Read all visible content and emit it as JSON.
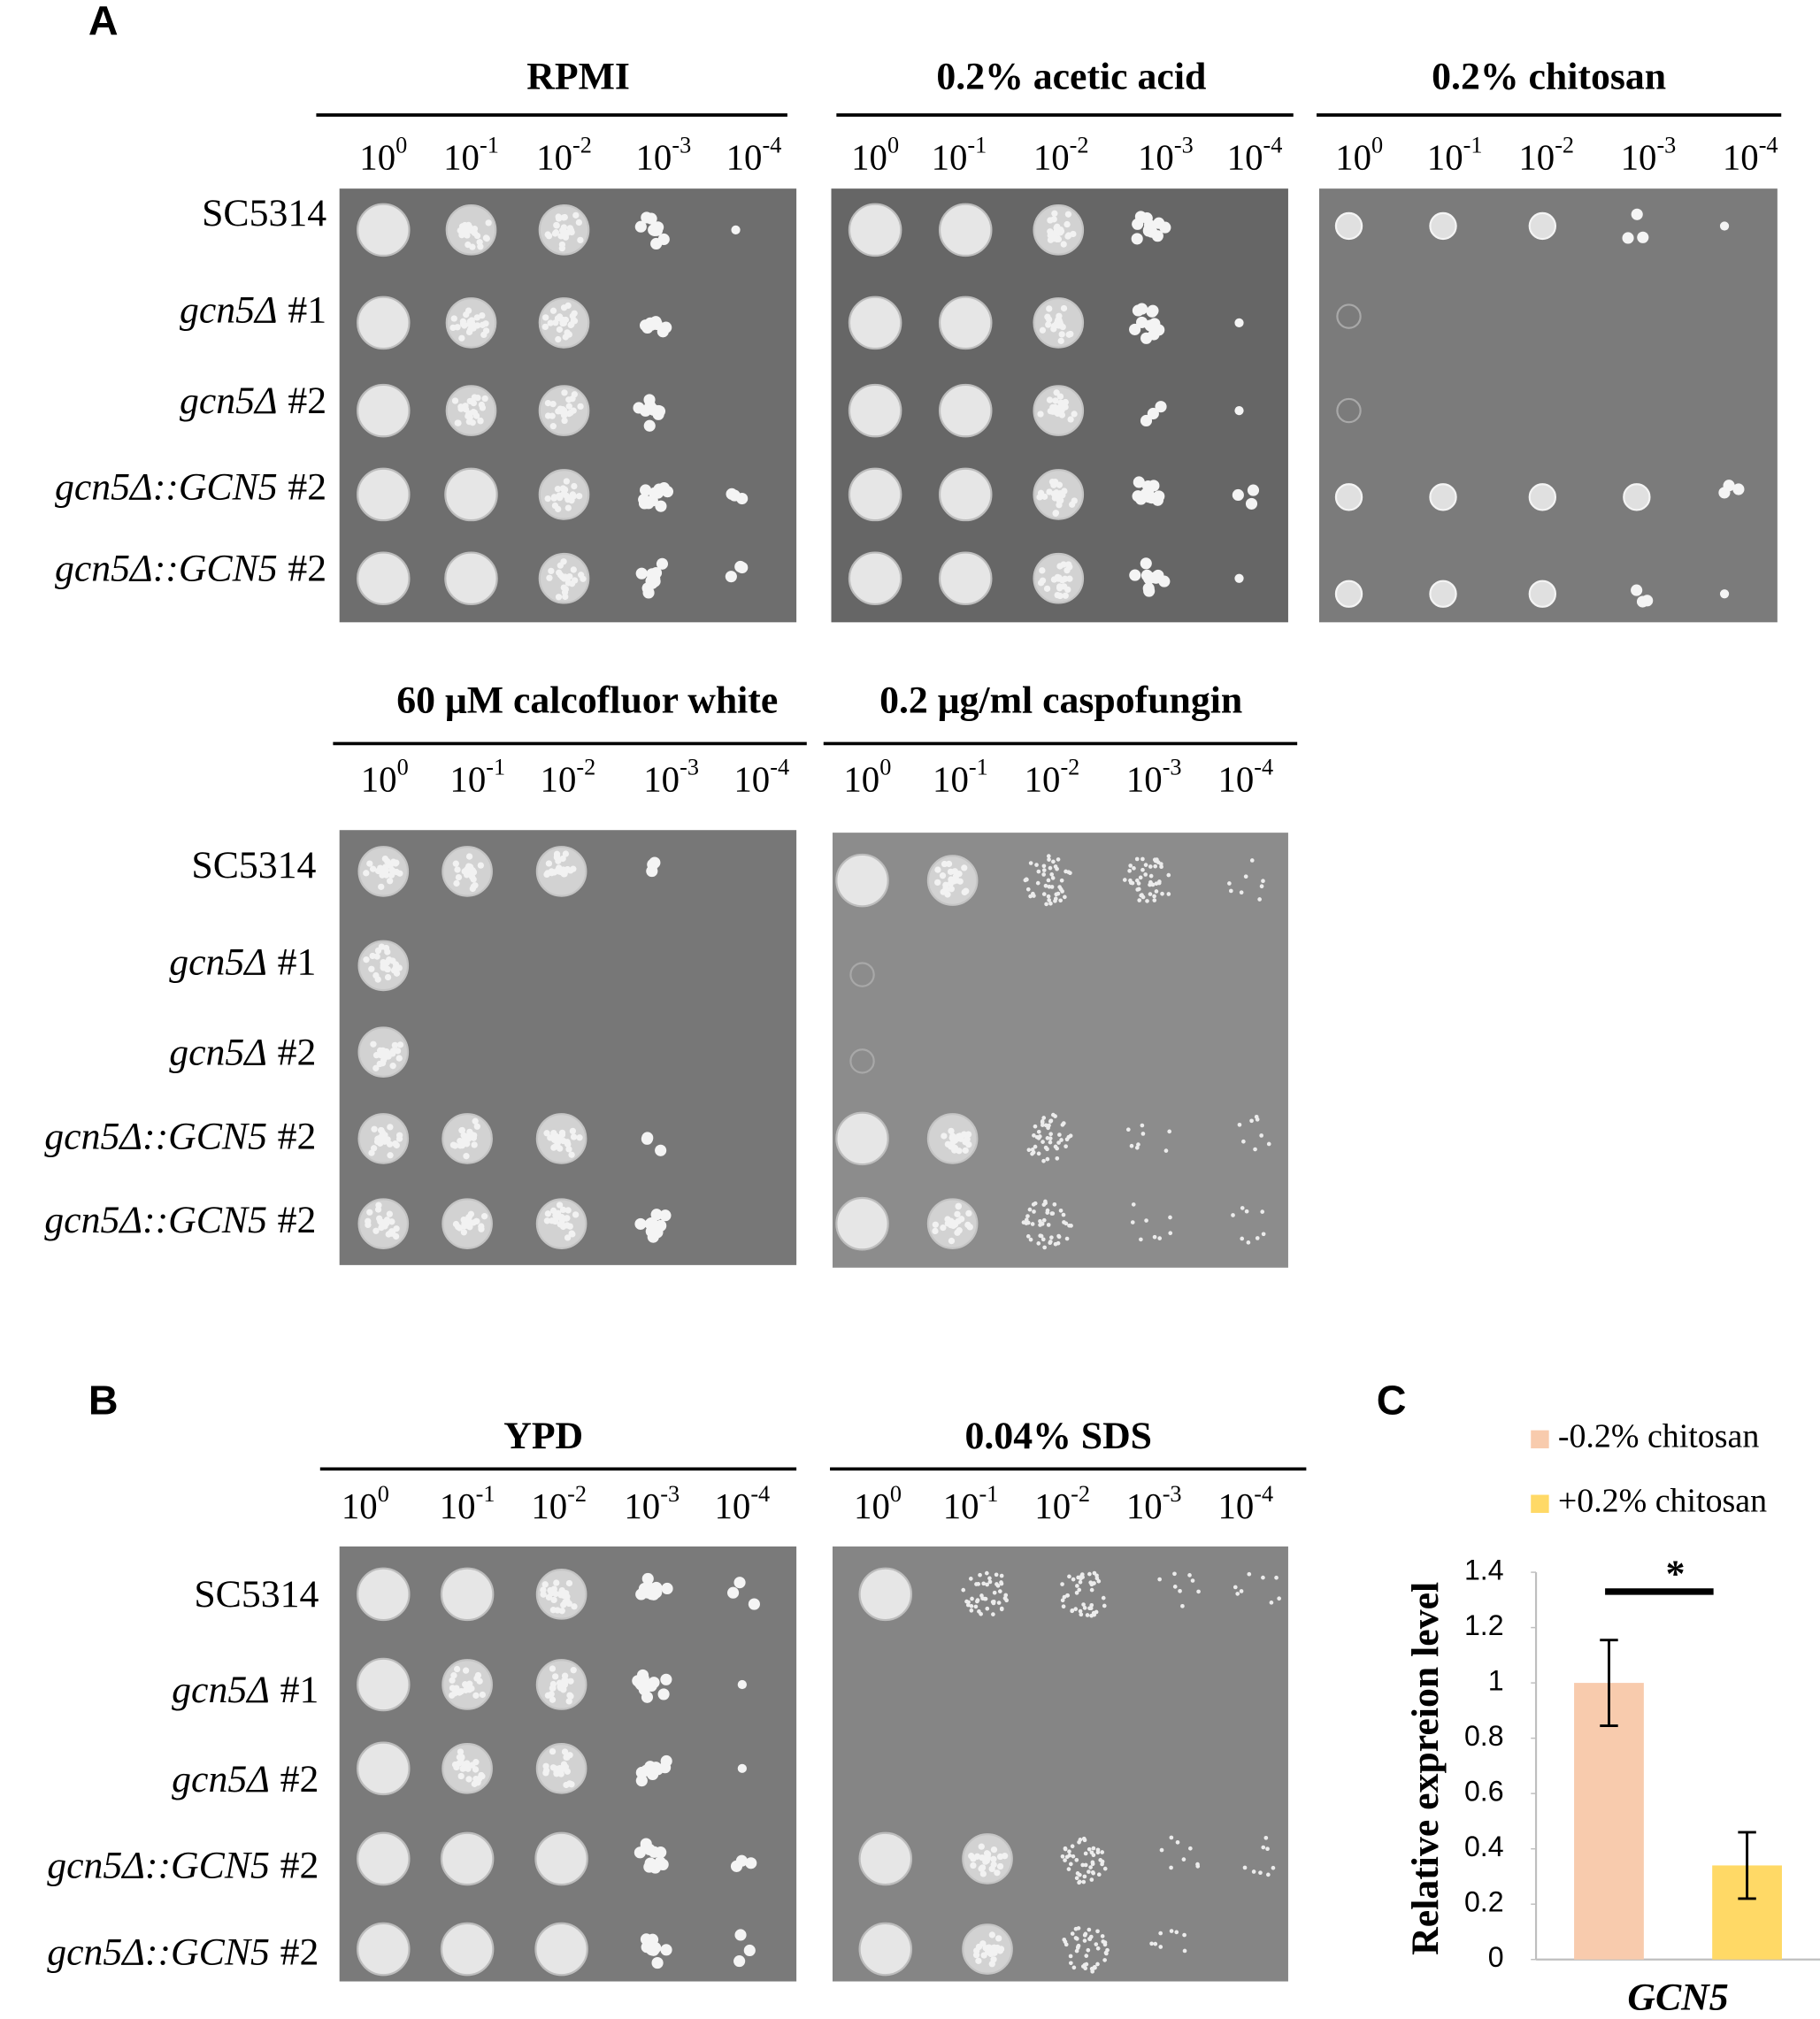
{
  "dilutions": [
    {
      "base": "10",
      "exp": "0"
    },
    {
      "base": "10",
      "exp": "-1"
    },
    {
      "base": "10",
      "exp": "-2"
    },
    {
      "base": "10",
      "exp": "-3"
    },
    {
      "base": "10",
      "exp": "-4"
    }
  ],
  "strains": [
    {
      "name": "SC5314",
      "italic": false
    },
    {
      "name": "gcn5Δ",
      "clone": "#1",
      "italic": true
    },
    {
      "name": "gcn5Δ",
      "clone": "#2",
      "italic": true
    },
    {
      "name": "gcn5Δ::GCN5",
      "clone": "#2",
      "italic": true
    },
    {
      "name": "gcn5Δ::GCN5",
      "clone": "#2",
      "italic": true
    }
  ],
  "panels": [
    {
      "label": "A",
      "conditions": [
        "RPMI",
        "0.2% acetic acid",
        "0.2% chitosan",
        "60 μM calcofluor white",
        "0.2 μg/ml caspofungin"
      ]
    },
    {
      "label": "B",
      "conditions": [
        "YPD",
        "0.04% SDS"
      ]
    },
    {
      "label": "C"
    }
  ],
  "chart_data": {
    "type": "bar",
    "categories": [
      "GCN5"
    ],
    "y_label": "Relative expreion level",
    "ylim": [
      0,
      1.4
    ],
    "yticks": [
      0,
      0.2,
      0.4,
      0.6,
      0.8,
      1,
      1.2,
      1.4
    ],
    "series": [
      {
        "name": "-0.2% chitosan",
        "color": "#f8cbad",
        "values": [
          1.0
        ],
        "errors": [
          0.155
        ]
      },
      {
        "name": "+0.2% chitosan",
        "color": "#ffd966",
        "values": [
          0.34
        ],
        "errors": [
          0.12
        ]
      }
    ],
    "annotation": "*",
    "grid": false,
    "legend": "top"
  }
}
